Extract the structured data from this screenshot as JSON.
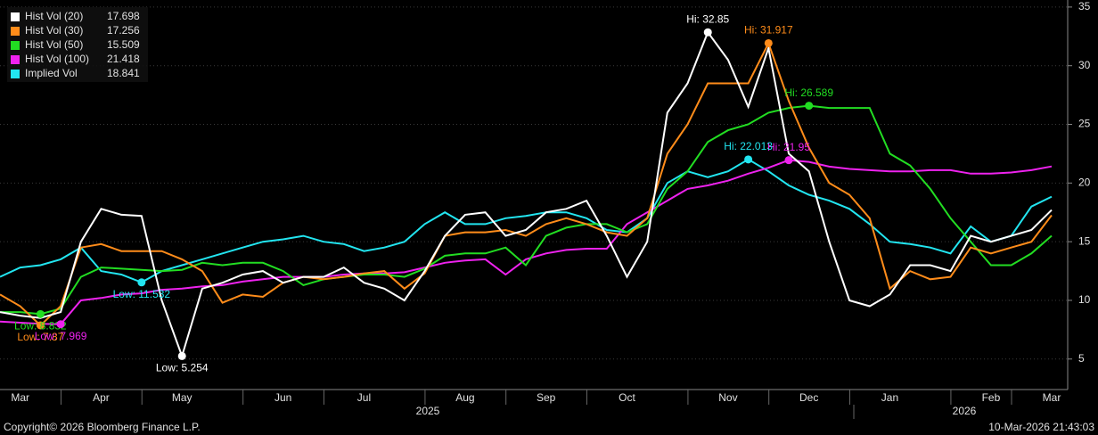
{
  "chart_data": {
    "type": "line",
    "categories": [
      null,
      "Mar",
      null,
      null,
      null,
      "Apr",
      null,
      null,
      null,
      "May",
      null,
      null,
      null,
      null,
      "Jun",
      null,
      null,
      null,
      "Jul",
      null,
      null,
      null,
      null,
      "Aug",
      null,
      null,
      null,
      "Sep",
      null,
      null,
      null,
      "Oct",
      null,
      null,
      null,
      null,
      "Nov",
      null,
      null,
      null,
      "Dec",
      null,
      null,
      null,
      "Jan",
      null,
      null,
      null,
      null,
      "Feb",
      null,
      null,
      "Mar"
    ],
    "series": [
      {
        "name": "Hist Vol (20)",
        "color": "#ffffff",
        "high_label": "Hi: 32.85",
        "low_label": "Low: 5.254",
        "values": [
          9,
          8.7,
          8.5,
          9,
          15,
          17.8,
          17.3,
          17.2,
          10,
          5.254,
          11,
          11.5,
          12.2,
          12.5,
          11.5,
          12,
          12,
          12.8,
          11.5,
          11,
          10,
          12.5,
          15.5,
          17.3,
          17.5,
          15.5,
          16,
          17.5,
          17.8,
          18.5,
          15.5,
          12,
          15,
          26,
          28.5,
          32.85,
          30.5,
          26.5,
          31.5,
          22.5,
          21,
          15,
          10,
          9.5,
          10.5,
          13,
          13,
          12.5,
          15.5,
          15,
          15.5,
          16,
          17.698
        ]
      },
      {
        "name": "Hist Vol (30)",
        "color": "#ff8c1a",
        "high_label": "Hi: 31.917",
        "low_label": "Low: 7.87",
        "values": [
          10.5,
          9.5,
          7.87,
          9.5,
          14.5,
          14.8,
          14.2,
          14.2,
          14.2,
          13.5,
          12.5,
          9.8,
          10.5,
          10.3,
          11.5,
          12,
          11.8,
          12,
          12.3,
          12.5,
          11,
          12.3,
          15.5,
          15.8,
          15.8,
          16,
          15.5,
          16.5,
          17,
          16.5,
          15.8,
          15.5,
          17,
          22.5,
          25,
          28.5,
          28.5,
          28.5,
          31.917,
          27,
          23,
          20,
          19,
          17,
          11,
          12.5,
          11.8,
          12,
          14.5,
          14,
          14.5,
          15,
          17.256
        ]
      },
      {
        "name": "Hist Vol (50)",
        "color": "#22dd22",
        "high_label": "Hi: 26.589",
        "low_label": "Low: 8.832",
        "values": [
          9,
          9,
          8.832,
          9.3,
          12,
          12.8,
          12.7,
          12.6,
          12.5,
          12.6,
          13.2,
          13,
          13.2,
          13.2,
          12.5,
          11.3,
          11.8,
          12,
          12.2,
          12.2,
          12,
          12.7,
          13.8,
          14,
          14,
          14.5,
          13,
          15.5,
          16.2,
          16.5,
          16.5,
          15.8,
          16.5,
          19.5,
          21,
          23.5,
          24.5,
          25,
          26,
          26.4,
          26.589,
          26.4,
          26.4,
          26.4,
          22.5,
          21.5,
          19.5,
          17,
          15,
          13,
          13,
          14,
          15.509
        ]
      },
      {
        "name": "Hist Vol (100)",
        "color": "#ee22ee",
        "high_label": "Hi: 21.95",
        "low_label": "Low: 7.969",
        "values": [
          8.2,
          8.1,
          8,
          7.969,
          10,
          10.2,
          10.5,
          10.6,
          10.9,
          11,
          11.2,
          11.3,
          11.6,
          11.8,
          12,
          12,
          12,
          12.2,
          12.3,
          12.3,
          12.4,
          12.8,
          13.2,
          13.4,
          13.5,
          12.2,
          13.5,
          14,
          14.3,
          14.4,
          14.4,
          16.5,
          17.5,
          18.5,
          19.5,
          19.8,
          20.2,
          20.8,
          21.3,
          21.95,
          21.8,
          21.4,
          21.2,
          21.1,
          21,
          21,
          21.1,
          21.1,
          20.8,
          20.8,
          20.9,
          21.1,
          21.418
        ]
      },
      {
        "name": "Implied Vol",
        "color": "#22e5f0",
        "high_label": "Hi: 22.013",
        "low_label": "Low: 11.532",
        "values": [
          12,
          12.8,
          13,
          13.5,
          14.5,
          12.5,
          12.2,
          11.532,
          12.5,
          13,
          13.5,
          14,
          14.5,
          15,
          15.2,
          15.5,
          15,
          14.8,
          14.2,
          14.5,
          15,
          16.5,
          17.5,
          16.5,
          16.5,
          17,
          17.2,
          17.5,
          17.5,
          17,
          16,
          15.8,
          17,
          20,
          21,
          20.5,
          21,
          22.013,
          21,
          19.8,
          19,
          18.5,
          17.8,
          16.5,
          15,
          14.8,
          14.5,
          14,
          16.3,
          15,
          15.5,
          18,
          18.841
        ]
      }
    ],
    "ylim": [
      2.4,
      35.6
    ],
    "yticks": [
      5,
      10,
      15,
      20,
      25,
      30,
      35
    ],
    "grid": true,
    "year_labels": [
      "2025",
      "2026"
    ],
    "source": "Copyright© 2026 Bloomberg Finance L.P.",
    "timestamp": "10-Mar-2026 21:43:03"
  }
}
